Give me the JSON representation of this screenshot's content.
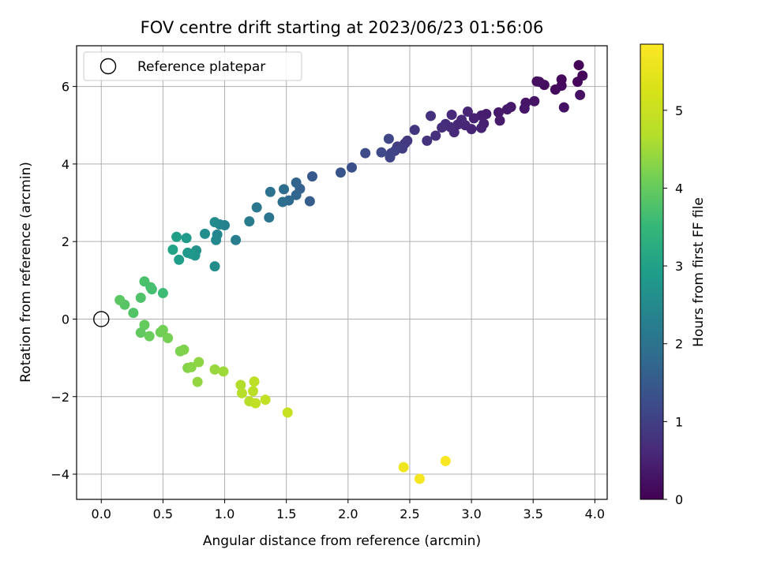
{
  "chart_data": {
    "type": "scatter",
    "title": "FOV centre drift starting at 2023/06/23 01:56:06",
    "xlabel": "Angular distance from reference (arcmin)",
    "ylabel": "Rotation from reference (arcmin)",
    "xlim": [
      -0.2,
      4.1
    ],
    "ylim": [
      -4.65,
      7.05
    ],
    "xticks": [
      0.0,
      0.5,
      1.0,
      1.5,
      2.0,
      2.5,
      3.0,
      3.5,
      4.0
    ],
    "xtick_labels": [
      "0.0",
      "0.5",
      "1.0",
      "1.5",
      "2.0",
      "2.5",
      "3.0",
      "3.5",
      "4.0"
    ],
    "yticks": [
      -4,
      -2,
      0,
      2,
      4,
      6
    ],
    "ytick_labels": [
      "−4",
      "−2",
      "0",
      "2",
      "4",
      "6"
    ],
    "grid": true,
    "legend": {
      "position": "top-left",
      "entries": [
        "Reference platepar"
      ]
    },
    "reference_point": {
      "x": 0.0,
      "y": 0.0
    },
    "colorbar": {
      "label": "Hours from first FF file",
      "range": [
        0,
        5.85
      ],
      "ticks": [
        0,
        1,
        2,
        3,
        4,
        5
      ],
      "tick_labels": [
        "0",
        "1",
        "2",
        "3",
        "4",
        "5"
      ],
      "colormap": "viridis"
    },
    "points": [
      [
        3.87,
        6.55,
        0.05
      ],
      [
        3.9,
        6.28,
        0.08
      ],
      [
        3.86,
        6.12,
        0.1
      ],
      [
        3.73,
        6.18,
        0.12
      ],
      [
        3.73,
        6.02,
        0.14
      ],
      [
        3.68,
        5.92,
        0.16
      ],
      [
        3.59,
        6.04,
        0.18
      ],
      [
        3.53,
        6.13,
        0.2
      ],
      [
        3.55,
        6.12,
        0.22
      ],
      [
        3.88,
        5.78,
        0.24
      ],
      [
        3.75,
        5.46,
        0.26
      ],
      [
        3.51,
        5.62,
        0.28
      ],
      [
        3.44,
        5.58,
        0.3
      ],
      [
        3.43,
        5.43,
        0.32
      ],
      [
        3.32,
        5.47,
        0.34
      ],
      [
        3.29,
        5.41,
        0.36
      ],
      [
        3.22,
        5.33,
        0.38
      ],
      [
        3.23,
        5.12,
        0.4
      ],
      [
        3.12,
        5.29,
        0.42
      ],
      [
        3.08,
        5.25,
        0.44
      ],
      [
        3.1,
        5.04,
        0.46
      ],
      [
        3.08,
        4.93,
        0.48
      ],
      [
        3.02,
        5.18,
        0.5
      ],
      [
        3.0,
        4.9,
        0.52
      ],
      [
        2.97,
        5.35,
        0.54
      ],
      [
        2.95,
        5.0,
        0.56
      ],
      [
        2.92,
        5.14,
        0.58
      ],
      [
        2.89,
        5.02,
        0.6
      ],
      [
        2.86,
        4.82,
        0.62
      ],
      [
        2.84,
        5.27,
        0.64
      ],
      [
        2.83,
        4.95,
        0.66
      ],
      [
        2.79,
        5.03,
        0.68
      ],
      [
        2.76,
        4.94,
        0.7
      ],
      [
        2.71,
        4.73,
        0.72
      ],
      [
        2.67,
        5.24,
        0.74
      ],
      [
        2.64,
        4.6,
        0.78
      ],
      [
        2.54,
        4.88,
        0.82
      ],
      [
        2.48,
        4.6,
        0.86
      ],
      [
        2.46,
        4.53,
        0.9
      ],
      [
        2.44,
        4.4,
        0.94
      ],
      [
        2.4,
        4.45,
        0.98
      ],
      [
        2.38,
        4.34,
        1.02
      ],
      [
        2.35,
        4.28,
        1.06
      ],
      [
        2.34,
        4.17,
        1.1
      ],
      [
        2.33,
        4.65,
        1.14
      ],
      [
        2.27,
        4.3,
        1.18
      ],
      [
        2.14,
        4.28,
        1.22
      ],
      [
        2.03,
        3.91,
        1.3
      ],
      [
        1.94,
        3.78,
        1.38
      ],
      [
        1.71,
        3.68,
        1.48
      ],
      [
        1.69,
        3.04,
        1.56
      ],
      [
        1.61,
        3.36,
        1.62
      ],
      [
        1.58,
        3.52,
        1.68
      ],
      [
        1.58,
        3.2,
        1.74
      ],
      [
        1.52,
        3.06,
        1.8
      ],
      [
        1.48,
        3.35,
        1.86
      ],
      [
        1.47,
        3.02,
        1.92
      ],
      [
        1.37,
        3.28,
        1.98
      ],
      [
        1.36,
        2.62,
        2.04
      ],
      [
        1.26,
        2.88,
        2.1
      ],
      [
        1.2,
        2.52,
        2.18
      ],
      [
        1.09,
        2.04,
        2.26
      ],
      [
        1.0,
        2.42,
        2.32
      ],
      [
        0.96,
        2.44,
        2.38
      ],
      [
        0.94,
        2.18,
        2.44
      ],
      [
        0.93,
        2.04,
        2.48
      ],
      [
        0.92,
        2.5,
        2.52
      ],
      [
        0.92,
        1.36,
        2.56
      ],
      [
        0.84,
        2.2,
        2.62
      ],
      [
        0.77,
        1.77,
        2.68
      ],
      [
        0.76,
        1.64,
        2.72
      ],
      [
        0.73,
        1.68,
        2.76
      ],
      [
        0.7,
        1.71,
        2.8
      ],
      [
        0.69,
        2.09,
        2.86
      ],
      [
        0.63,
        1.53,
        2.92
      ],
      [
        0.61,
        2.12,
        2.98
      ],
      [
        0.58,
        1.79,
        3.04
      ],
      [
        0.5,
        0.67,
        3.6
      ],
      [
        0.41,
        0.77,
        3.66
      ],
      [
        0.4,
        0.82,
        3.7
      ],
      [
        0.35,
        0.97,
        3.74
      ],
      [
        0.32,
        0.55,
        3.78
      ],
      [
        0.26,
        0.16,
        3.82
      ],
      [
        0.19,
        0.37,
        3.86
      ],
      [
        0.15,
        0.49,
        3.9
      ],
      [
        0.32,
        -0.35,
        3.96
      ],
      [
        0.35,
        -0.15,
        4.0
      ],
      [
        0.39,
        -0.44,
        4.04
      ],
      [
        0.48,
        -0.34,
        4.08
      ],
      [
        0.5,
        -0.28,
        4.12
      ],
      [
        0.54,
        -0.49,
        4.16
      ],
      [
        0.64,
        -0.83,
        4.2
      ],
      [
        0.67,
        -0.79,
        4.24
      ],
      [
        0.7,
        -1.26,
        4.28
      ],
      [
        0.73,
        -1.24,
        4.32
      ],
      [
        0.79,
        -1.11,
        4.36
      ],
      [
        0.78,
        -1.62,
        4.4
      ],
      [
        0.92,
        -1.3,
        4.44
      ],
      [
        0.99,
        -1.35,
        4.48
      ],
      [
        1.13,
        -1.7,
        4.66
      ],
      [
        1.14,
        -1.91,
        4.7
      ],
      [
        1.2,
        -2.12,
        4.74
      ],
      [
        1.23,
        -1.86,
        4.78
      ],
      [
        1.24,
        -1.61,
        4.82
      ],
      [
        1.25,
        -2.17,
        4.86
      ],
      [
        1.33,
        -2.08,
        4.9
      ],
      [
        1.51,
        -2.41,
        4.96
      ],
      [
        2.45,
        -3.82,
        5.64
      ],
      [
        2.58,
        -4.12,
        5.72
      ],
      [
        2.79,
        -3.66,
        5.8
      ]
    ],
    "point_fields": [
      "x",
      "y",
      "hours"
    ]
  }
}
